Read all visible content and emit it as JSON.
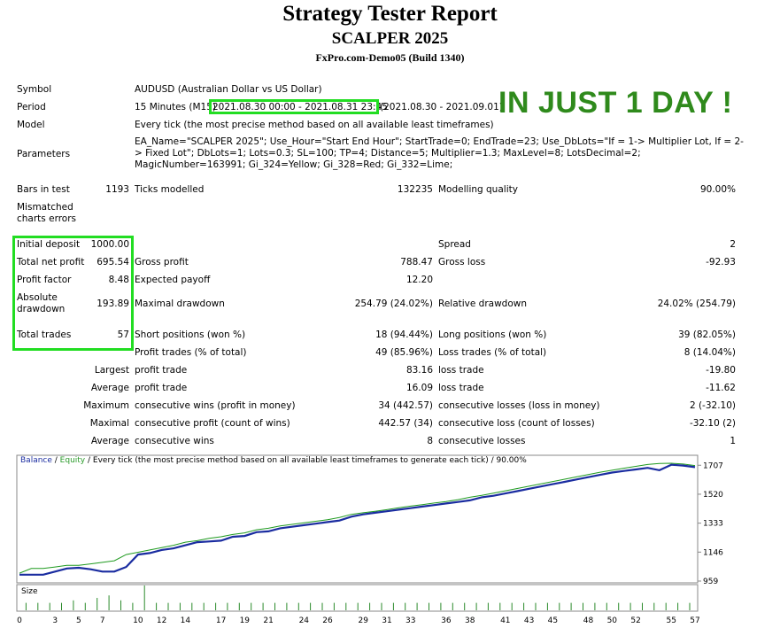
{
  "header": {
    "title": "Strategy Tester Report",
    "expert": "SCALPER 2025",
    "server": "FxPro.com-Demo05 (Build 1340)"
  },
  "info": {
    "symbol_label": "Symbol",
    "symbol_value": "AUDUSD (Australian Dollar vs US Dollar)",
    "period_label": "Period",
    "period_prefix": "15 Minutes (M15)",
    "period_range": "2021.08.30 00:00 - 2021.08.31 23:45",
    "period_suffix": "(2021.08.30 - 2021.09.01)",
    "model_label": "Model",
    "model_value": "Every tick (the most precise method based on all available least timeframes)",
    "parameters_label": "Parameters",
    "parameters_value": "EA_Name=\"SCALPER 2025\"; Use_Hour=\"Start End Hour\"; StartTrade=0; EndTrade=23; Use_DbLots=\"If = 1-> Multiplier Lot, If = 2-> Fixed Lot\"; DbLots=1; Lots=0.3; SL=100; TP=4; Distance=5; Multiplier=1.3; MaxLevel=8; LotsDecimal=2; MagicNumber=163991; Gi_324=Yellow; Gi_328=Red; Gi_332=Lime;"
  },
  "annotation": "IN JUST 1 DAY !",
  "stats": {
    "bars_label": "Bars in test",
    "bars_value": "1193",
    "ticks_label": "Ticks modelled",
    "ticks_value": "132235",
    "quality_label": "Modelling quality",
    "quality_value": "90.00%",
    "mismatch_label1": "Mismatched",
    "mismatch_label2": "charts errors",
    "deposit_label": "Initial deposit",
    "deposit_value": "1000.00",
    "spread_label": "Spread",
    "spread_value": "2",
    "net_label": "Total net profit",
    "net_value": "695.54",
    "gross_profit_label": "Gross profit",
    "gross_profit_value": "788.47",
    "gross_loss_label": "Gross loss",
    "gross_loss_value": "-92.93",
    "pf_label": "Profit factor",
    "pf_value": "8.48",
    "payoff_label": "Expected payoff",
    "payoff_value": "12.20",
    "absdd_label1": "Absolute",
    "absdd_label2": "drawdown",
    "absdd_value": "193.89",
    "maxdd_label": "Maximal drawdown",
    "maxdd_value": "254.79 (24.02%)",
    "reldd_label": "Relative drawdown",
    "reldd_value": "24.02% (254.79)",
    "trades_label": "Total trades",
    "trades_value": "57",
    "short_label": "Short positions (won %)",
    "short_value": "18 (94.44%)",
    "long_label": "Long positions (won %)",
    "long_value": "39 (82.05%)",
    "pt_label": "Profit trades (% of total)",
    "pt_value": "49 (85.96%)",
    "lt_label": "Loss trades (% of total)",
    "lt_value": "8 (14.04%)",
    "largest_label": "Largest",
    "largest_profit_label": "profit trade",
    "largest_profit_value": "83.16",
    "largest_loss_label": "loss trade",
    "largest_loss_value": "-19.80",
    "average_label": "Average",
    "average_profit_label": "profit trade",
    "average_profit_value": "16.09",
    "average_loss_label": "loss trade",
    "average_loss_value": "-11.62",
    "maximum_label": "Maximum",
    "max_wins_label": "consecutive wins (profit in money)",
    "max_wins_value": "34 (442.57)",
    "max_losses_label": "consecutive losses (loss in money)",
    "max_losses_value": "2 (-32.10)",
    "maximal_label": "Maximal",
    "maximal_profit_label": "consecutive profit (count of wins)",
    "maximal_profit_value": "442.57 (34)",
    "maximal_loss_label": "consecutive loss (count of losses)",
    "maximal_loss_value": "-32.10 (2)",
    "average2_label": "Average",
    "avg_wins_label": "consecutive wins",
    "avg_wins_value": "8",
    "avg_losses_label": "consecutive losses",
    "avg_losses_value": "1"
  },
  "chart_legend": {
    "balance": "Balance",
    "sep": " / ",
    "equity": "Equity",
    "rest": " / Every tick (the most precise method based on all available least timeframes to generate each tick) / 90.00%"
  },
  "chart_data": {
    "type": "line",
    "size_label": "Size",
    "y_ticks": [
      959,
      1146,
      1333,
      1520,
      1707
    ],
    "ylim": [
      959,
      1760
    ],
    "x_ticks": [
      0,
      3,
      5,
      7,
      10,
      12,
      14,
      17,
      19,
      21,
      24,
      26,
      29,
      31,
      33,
      36,
      38,
      41,
      43,
      45,
      48,
      50,
      52,
      55,
      57
    ],
    "xlim": [
      0,
      57
    ],
    "colors": {
      "balance": "#1a2ca0",
      "equity": "#1f9a1f",
      "size": "#2a8a2a"
    },
    "series": [
      {
        "name": "Balance",
        "values": [
          [
            0,
            1000
          ],
          [
            2,
            1000
          ],
          [
            3,
            1020
          ],
          [
            4,
            1040
          ],
          [
            5,
            1045
          ],
          [
            6,
            1035
          ],
          [
            7,
            1020
          ],
          [
            8,
            1020
          ],
          [
            9,
            1050
          ],
          [
            10,
            1130
          ],
          [
            11,
            1140
          ],
          [
            12,
            1160
          ],
          [
            13,
            1170
          ],
          [
            14,
            1190
          ],
          [
            15,
            1210
          ],
          [
            16,
            1215
          ],
          [
            17,
            1220
          ],
          [
            18,
            1245
          ],
          [
            19,
            1250
          ],
          [
            20,
            1275
          ],
          [
            21,
            1280
          ],
          [
            22,
            1300
          ],
          [
            23,
            1310
          ],
          [
            24,
            1320
          ],
          [
            25,
            1330
          ],
          [
            26,
            1340
          ],
          [
            27,
            1350
          ],
          [
            28,
            1375
          ],
          [
            29,
            1390
          ],
          [
            30,
            1400
          ],
          [
            31,
            1410
          ],
          [
            32,
            1420
          ],
          [
            33,
            1430
          ],
          [
            34,
            1440
          ],
          [
            35,
            1450
          ],
          [
            36,
            1460
          ],
          [
            37,
            1470
          ],
          [
            38,
            1480
          ],
          [
            39,
            1500
          ],
          [
            40,
            1510
          ],
          [
            41,
            1525
          ],
          [
            42,
            1540
          ],
          [
            43,
            1555
          ],
          [
            44,
            1570
          ],
          [
            45,
            1585
          ],
          [
            46,
            1600
          ],
          [
            47,
            1615
          ],
          [
            48,
            1630
          ],
          [
            49,
            1645
          ],
          [
            50,
            1660
          ],
          [
            51,
            1670
          ],
          [
            52,
            1680
          ],
          [
            53,
            1690
          ],
          [
            54,
            1675
          ],
          [
            55,
            1710
          ],
          [
            56,
            1705
          ],
          [
            57,
            1695
          ]
        ]
      },
      {
        "name": "Equity",
        "values": [
          [
            0,
            1010
          ],
          [
            1,
            1040
          ],
          [
            2,
            1040
          ],
          [
            3,
            1050
          ],
          [
            4,
            1060
          ],
          [
            5,
            1060
          ],
          [
            6,
            1070
          ],
          [
            7,
            1080
          ],
          [
            8,
            1090
          ],
          [
            9,
            1130
          ],
          [
            10,
            1145
          ],
          [
            11,
            1160
          ],
          [
            12,
            1175
          ],
          [
            13,
            1190
          ],
          [
            14,
            1210
          ],
          [
            15,
            1220
          ],
          [
            16,
            1235
          ],
          [
            17,
            1245
          ],
          [
            18,
            1260
          ],
          [
            19,
            1270
          ],
          [
            20,
            1290
          ],
          [
            21,
            1300
          ],
          [
            22,
            1315
          ],
          [
            23,
            1325
          ],
          [
            24,
            1335
          ],
          [
            25,
            1345
          ],
          [
            26,
            1355
          ],
          [
            27,
            1370
          ],
          [
            28,
            1390
          ],
          [
            29,
            1400
          ],
          [
            30,
            1410
          ],
          [
            31,
            1420
          ],
          [
            32,
            1432
          ],
          [
            33,
            1443
          ],
          [
            34,
            1453
          ],
          [
            35,
            1463
          ],
          [
            36,
            1473
          ],
          [
            37,
            1485
          ],
          [
            38,
            1500
          ],
          [
            39,
            1512
          ],
          [
            40,
            1527
          ],
          [
            41,
            1542
          ],
          [
            42,
            1557
          ],
          [
            43,
            1572
          ],
          [
            44,
            1587
          ],
          [
            45,
            1602
          ],
          [
            46,
            1617
          ],
          [
            47,
            1632
          ],
          [
            48,
            1647
          ],
          [
            49,
            1662
          ],
          [
            50,
            1675
          ],
          [
            51,
            1688
          ],
          [
            52,
            1700
          ],
          [
            53,
            1712
          ],
          [
            54,
            1718
          ],
          [
            55,
            1720
          ],
          [
            56,
            1715
          ],
          [
            57,
            1705
          ]
        ]
      }
    ],
    "size_values": [
      0.3,
      0.3,
      0.3,
      0.3,
      0.4,
      0.3,
      0.5,
      0.6,
      0.4,
      0.3,
      1.0,
      0.3,
      0.3,
      0.3,
      0.3,
      0.3,
      0.3,
      0.3,
      0.3,
      0.3,
      0.3,
      0.3,
      0.3,
      0.3,
      0.3,
      0.3,
      0.3,
      0.3,
      0.3,
      0.3,
      0.3,
      0.3,
      0.3,
      0.3,
      0.3,
      0.3,
      0.3,
      0.3,
      0.3,
      0.3,
      0.3,
      0.3,
      0.3,
      0.3,
      0.3,
      0.3,
      0.3,
      0.3,
      0.3,
      0.3,
      0.3,
      0.3,
      0.3,
      0.3,
      0.3,
      0.3,
      0.3
    ]
  }
}
